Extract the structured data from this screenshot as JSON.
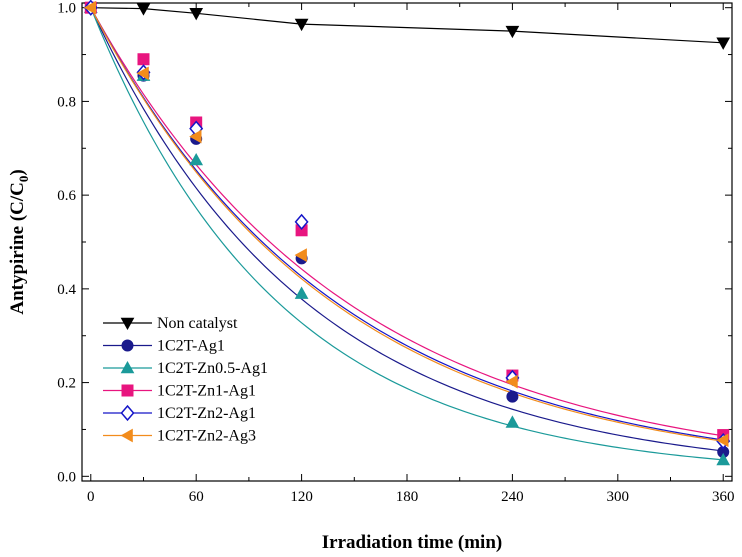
{
  "chart_data": {
    "type": "scatter",
    "xlabel": "Irradiation time (min)",
    "ylabel_main": "Antypirine (C/C",
    "ylabel_sub": "0",
    "ylabel_close": ")",
    "xlim": [
      -5,
      365
    ],
    "ylim": [
      -0.01,
      1.01
    ],
    "x_ticks": [
      0,
      60,
      120,
      180,
      240,
      300,
      360
    ],
    "x_tick_labels": [
      "0",
      "60",
      "120",
      "180",
      "240",
      "300",
      "360"
    ],
    "x_minor_ticks": [
      30,
      90,
      150,
      210,
      270,
      330
    ],
    "y_ticks": [
      0.0,
      0.2,
      0.4,
      0.6,
      0.8,
      1.0
    ],
    "y_tick_labels": [
      "0.0",
      "0.2",
      "0.4",
      "0.6",
      "0.8",
      "1.0"
    ],
    "y_minor_ticks": [
      0.1,
      0.3,
      0.5,
      0.7,
      0.9
    ],
    "grid": false,
    "legend_position": "bottom-left",
    "x": [
      0,
      30,
      60,
      120,
      240,
      360
    ],
    "series": [
      {
        "name": "Non catalyst",
        "marker": "triangle-down",
        "color": "#000000",
        "values": [
          1.0,
          0.998,
          0.988,
          0.965,
          0.95,
          0.925
        ],
        "fit": "line",
        "fit_values": [
          1.0,
          0.998,
          0.988,
          0.965,
          0.95,
          0.925
        ]
      },
      {
        "name": "1C2T-Ag1",
        "marker": "circle",
        "color": "#1a1a8c",
        "line_color": "#1a1a8c",
        "values": [
          1.0,
          0.855,
          0.72,
          0.465,
          0.17,
          0.052
        ],
        "fit": "exp",
        "fit_k": 0.0081
      },
      {
        "name": "1C2T-Zn0.5-Ag1",
        "marker": "triangle-up",
        "color": "#1b9a9a",
        "line_color": "#1b9a9a",
        "values": [
          1.0,
          0.855,
          0.675,
          0.39,
          0.115,
          0.035
        ],
        "fit": "exp",
        "fit_k": 0.0093
      },
      {
        "name": "1C2T-Zn1-Ag1",
        "marker": "square",
        "color": "#e8157f",
        "line_color": "#e8157f",
        "values": [
          1.0,
          0.89,
          0.755,
          0.525,
          0.215,
          0.088
        ],
        "fit": "exp",
        "fit_k": 0.0068
      },
      {
        "name": "1C2T-Zn2-Ag1",
        "marker": "diamond-open",
        "color": "#1515c8",
        "line_color": "#1515c8",
        "values": [
          1.0,
          0.862,
          0.742,
          0.543,
          0.21,
          0.075
        ],
        "fit": "exp",
        "fit_k": 0.0071
      },
      {
        "name": "1C2T-Zn2-Ag3",
        "marker": "triangle-left",
        "color": "#f28c1c",
        "line_color": "#f28c1c",
        "values": [
          1.0,
          0.86,
          0.725,
          0.472,
          0.202,
          0.077
        ],
        "fit": "exp",
        "fit_k": 0.0072
      }
    ]
  }
}
